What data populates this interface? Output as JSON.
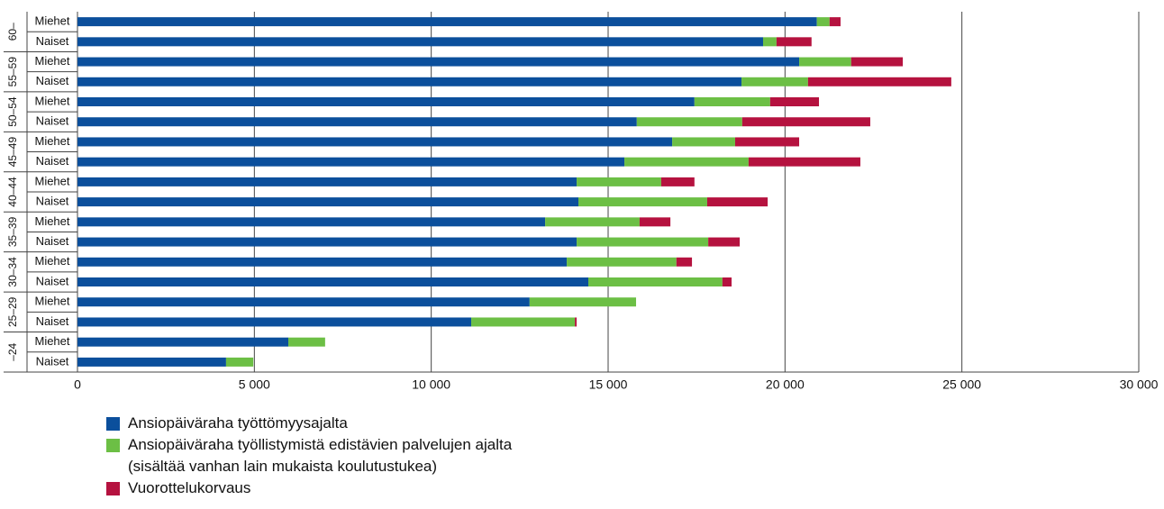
{
  "chart_data": {
    "type": "stacked-bar-horizontal",
    "group_labels": [
      "60–",
      "55–59",
      "50–54",
      "45–49",
      "40–44",
      "35–39",
      "30–34",
      "25–29",
      "–24"
    ],
    "categories": [
      "Miehet",
      "Naiset",
      "Miehet",
      "Naiset",
      "Miehet",
      "Naiset",
      "Miehet",
      "Naiset",
      "Miehet",
      "Naiset",
      "Miehet",
      "Naiset",
      "Miehet",
      "Naiset",
      "Miehet",
      "Naiset",
      "Miehet",
      "Naiset"
    ],
    "series": [
      {
        "name": "Ansiopäiväraha työttömyysajalta",
        "color": "#0b4f9c",
        "values": [
          20900,
          19380,
          20400,
          18770,
          17440,
          15810,
          16810,
          15460,
          14110,
          14160,
          13220,
          14110,
          13830,
          14440,
          12780,
          11130,
          5960,
          4200
        ]
      },
      {
        "name": "Ansiopäiväraha työllistymistä edistävien palvelujen ajalta (sisältää vanhan lain mukaista koulutustukea)",
        "color": "#6cbf45",
        "values": [
          360,
          380,
          1470,
          1880,
          2140,
          2980,
          1780,
          3510,
          2390,
          3640,
          2670,
          3720,
          3100,
          3790,
          3010,
          2930,
          1040,
          770
        ]
      },
      {
        "name": "Vuorottelukorvaus",
        "color": "#b5123f",
        "values": [
          310,
          990,
          1460,
          4050,
          1380,
          3620,
          1810,
          3160,
          940,
          1710,
          870,
          890,
          440,
          260,
          0,
          50,
          0,
          0
        ]
      }
    ],
    "xlim": [
      0,
      30000
    ],
    "xticks": [
      0,
      {
        "value": 5000,
        "label": "5 000"
      },
      {
        "value": 10000,
        "label": "10 000"
      },
      {
        "value": 15000,
        "label": "15 000"
      },
      {
        "value": 20000,
        "label": "20 000"
      },
      {
        "value": 25000,
        "label": "25 000"
      },
      {
        "value": 30000,
        "label": "30 000"
      }
    ],
    "grid": true
  }
}
